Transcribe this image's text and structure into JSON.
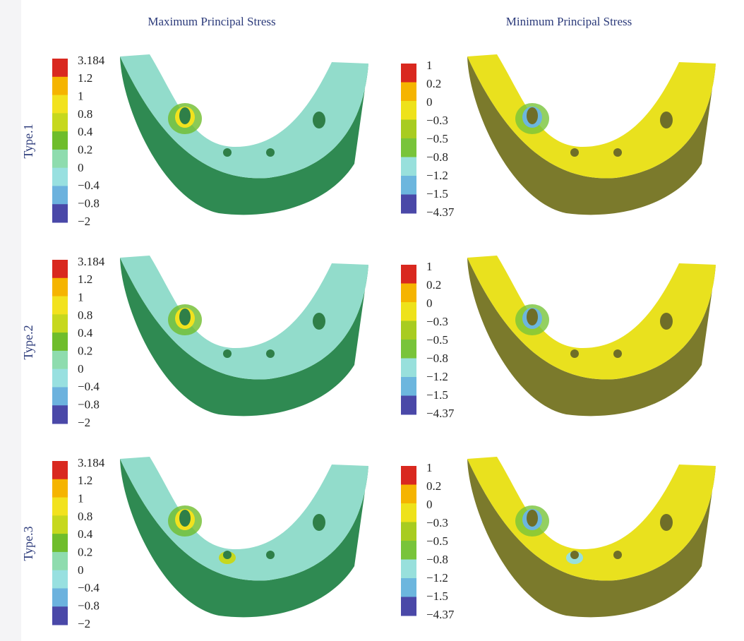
{
  "headers": [
    "Maximum Principal Stress",
    "Minimum Principal Stress"
  ],
  "rows": [
    "Type.1",
    "Type.2",
    "Type.3"
  ],
  "legends": [
    {
      "labels": [
        "3.184",
        "1.2",
        "1",
        "0.8",
        "0.4",
        "0.2",
        "0",
        "−0.4",
        "−0.8",
        "−2"
      ],
      "colors": [
        "#d9281f",
        "#f5b400",
        "#f2e21e",
        "#c6d81e",
        "#6fbd2c",
        "#8edcae",
        "#98e0e0",
        "#6cb2de",
        "#4a48a8"
      ]
    },
    {
      "labels": [
        "1",
        "0.2",
        "0",
        "−0.3",
        "−0.5",
        "−0.8",
        "−1.2",
        "−1.5",
        "−4.37"
      ],
      "colors": [
        "#d9281f",
        "#f5b400",
        "#eee21a",
        "#a8cc20",
        "#78c43a",
        "#98e0dc",
        "#6cb6de",
        "#4a48a8"
      ]
    }
  ]
}
